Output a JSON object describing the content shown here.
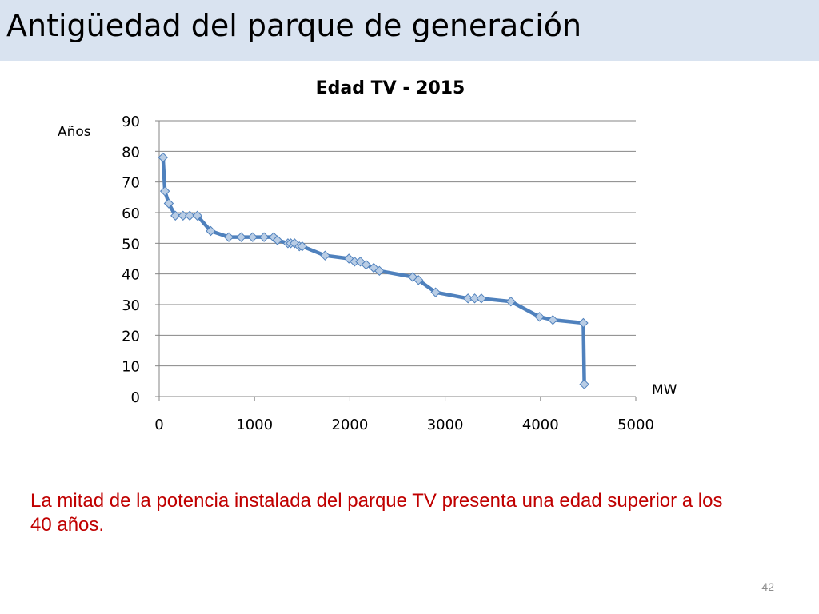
{
  "slide": {
    "title": "Antigüedad del parque de generación",
    "note": "La mitad de la potencia instalada del parque TV presenta una edad superior a los 40 años.",
    "page_number": "42"
  },
  "colors": {
    "title_bar": "#d9e3f0",
    "series_line": "#4f81bd",
    "marker_fill": "#b9cde5",
    "note_text": "#c00000"
  },
  "chart_data": {
    "type": "line",
    "title": "Edad TV - 2015",
    "xlabel": "MW",
    "ylabel": "Años",
    "xlim": [
      0,
      5000
    ],
    "ylim": [
      0,
      90
    ],
    "x_ticks": [
      0,
      1000,
      2000,
      3000,
      4000,
      5000
    ],
    "y_ticks": [
      0,
      10,
      20,
      30,
      40,
      50,
      60,
      70,
      80,
      90
    ],
    "grid": "horizontal",
    "legend": "none",
    "series": [
      {
        "marker": "diamond",
        "x": [
          40,
          60,
          100,
          170,
          250,
          320,
          400,
          540,
          730,
          860,
          980,
          1100,
          1200,
          1240,
          1350,
          1380,
          1420,
          1470,
          1500,
          1740,
          1990,
          2050,
          2110,
          2170,
          2250,
          2310,
          2660,
          2720,
          2900,
          3240,
          3310,
          3380,
          3690,
          3990,
          4130,
          4450,
          4460
        ],
        "y": [
          78,
          67,
          63,
          59,
          59,
          59,
          59,
          54,
          52,
          52,
          52,
          52,
          52,
          51,
          50,
          50,
          50,
          49,
          49,
          46,
          45,
          44,
          44,
          43,
          42,
          41,
          39,
          38,
          34,
          32,
          32,
          32,
          31,
          26,
          25,
          24,
          4
        ]
      }
    ]
  }
}
